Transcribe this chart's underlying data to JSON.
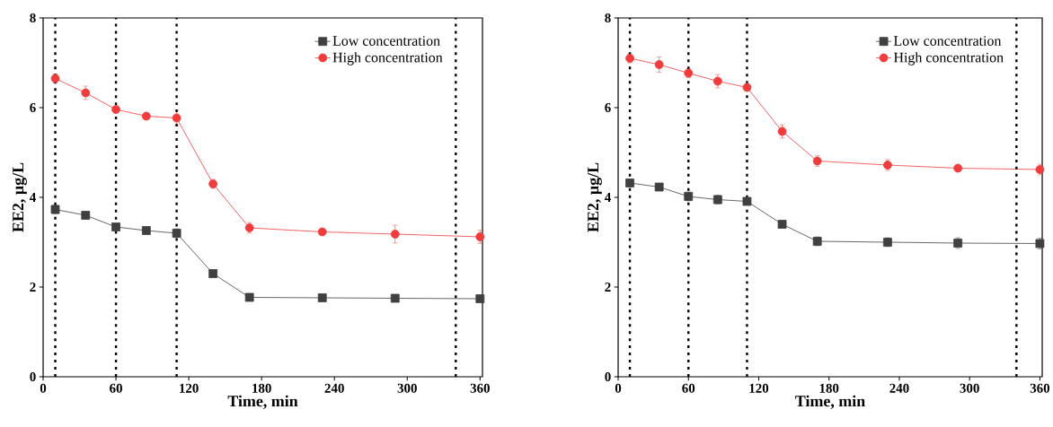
{
  "chart_data": [
    {
      "type": "line",
      "xlabel": "Time, min",
      "ylabel": "EE2, µg/L",
      "x": [
        10,
        35,
        60,
        85,
        110,
        140,
        170,
        230,
        290,
        360
      ],
      "xlim": [
        0,
        362
      ],
      "ylim": [
        0,
        8
      ],
      "xticks": [
        0,
        60,
        120,
        180,
        240,
        300,
        360
      ],
      "yticks": [
        0,
        2,
        4,
        6,
        8
      ],
      "legend": "top right",
      "grid": false,
      "line_style": "solid",
      "series": [
        {
          "name": "Low concentration",
          "color": "#404040",
          "marker": "square",
          "values": [
            3.73,
            3.6,
            3.34,
            3.26,
            3.2,
            2.3,
            1.77,
            1.76,
            1.75,
            1.74
          ],
          "errors": [
            0.1,
            0.06,
            0.05,
            0.05,
            0.1,
            0.08,
            0.08,
            0.05,
            0.05,
            0.05
          ]
        },
        {
          "name": "High concentration",
          "color": "#f03c3c",
          "marker": "circle",
          "values": [
            6.65,
            6.33,
            5.96,
            5.81,
            5.77,
            4.3,
            3.32,
            3.23,
            3.18,
            3.12
          ],
          "errors": [
            0.1,
            0.15,
            0.07,
            0.05,
            0.17,
            0.1,
            0.12,
            0.06,
            0.2,
            0.15
          ]
        }
      ],
      "ref_lines": [
        {
          "axis": "x",
          "value": 10,
          "color": "#000000",
          "line_style": "dotted"
        },
        {
          "axis": "x",
          "value": 60,
          "color": "#000000",
          "line_style": "dotted"
        },
        {
          "axis": "x",
          "value": 110,
          "color": "#000000",
          "line_style": "dotted"
        },
        {
          "axis": "x",
          "value": 340,
          "color": "#000000",
          "line_style": "dotted"
        }
      ]
    },
    {
      "type": "line",
      "xlabel": "Time, min",
      "ylabel": "EE2, µg/L",
      "x": [
        10,
        35,
        60,
        85,
        110,
        140,
        170,
        230,
        290,
        360
      ],
      "xlim": [
        0,
        362
      ],
      "ylim": [
        0,
        8
      ],
      "xticks": [
        0,
        60,
        120,
        180,
        240,
        300,
        360
      ],
      "yticks": [
        0,
        2,
        4,
        6,
        8
      ],
      "legend": "top right",
      "grid": false,
      "line_style": "solid",
      "series": [
        {
          "name": "Low concentration",
          "color": "#404040",
          "marker": "square",
          "values": [
            4.32,
            4.23,
            4.02,
            3.95,
            3.91,
            3.4,
            3.02,
            3.0,
            2.98,
            2.97
          ],
          "errors": [
            0.08,
            0.05,
            0.1,
            0.1,
            0.08,
            0.05,
            0.1,
            0.1,
            0.12,
            0.12
          ]
        },
        {
          "name": "High concentration",
          "color": "#f03c3c",
          "marker": "circle",
          "values": [
            7.1,
            6.96,
            6.77,
            6.59,
            6.45,
            5.47,
            4.81,
            4.72,
            4.65,
            4.62
          ],
          "errors": [
            0.1,
            0.17,
            0.1,
            0.15,
            0.07,
            0.15,
            0.12,
            0.12,
            0.06,
            0.12
          ]
        }
      ],
      "ref_lines": [
        {
          "axis": "x",
          "value": 10,
          "color": "#000000",
          "line_style": "dotted"
        },
        {
          "axis": "x",
          "value": 60,
          "color": "#000000",
          "line_style": "dotted"
        },
        {
          "axis": "x",
          "value": 110,
          "color": "#000000",
          "line_style": "dotted"
        },
        {
          "axis": "x",
          "value": 340,
          "color": "#000000",
          "line_style": "dotted"
        }
      ]
    }
  ]
}
